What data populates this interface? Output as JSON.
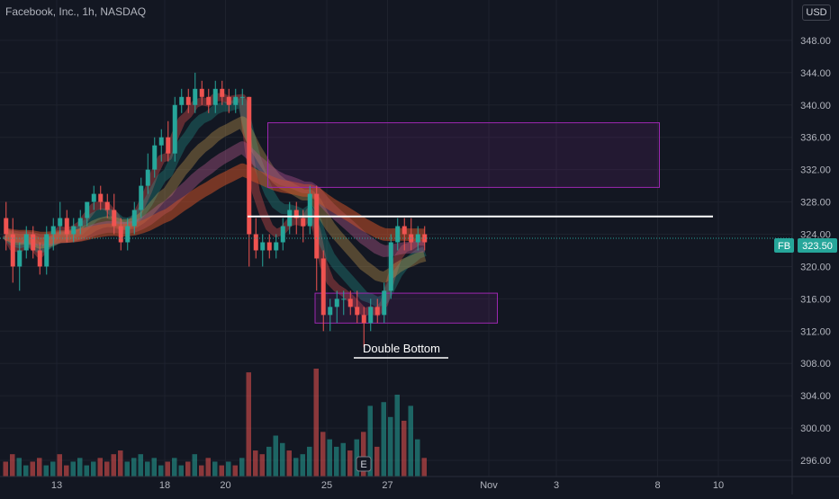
{
  "header": {
    "title": "Facebook, Inc., 1h, NASDAQ",
    "currency": "USD"
  },
  "price_tag": {
    "symbol": "FB",
    "value": "323.50"
  },
  "annotation": {
    "text": "Double Bottom"
  },
  "earnings_marker": {
    "label": "E"
  },
  "colors": {
    "background": "#131722",
    "up": "#26a69a",
    "down": "#ef5350",
    "grid": "#1e222d",
    "axis_text": "#b2b5be",
    "zone": "#9c27b0",
    "last_price": "#26a69a"
  },
  "chart_data": {
    "type": "candlestick",
    "symbol": "FB",
    "timeframe": "1h",
    "exchange": "NASDAQ",
    "ylim": [
      294,
      353
    ],
    "y_ticks": [
      "296.00",
      "300.00",
      "304.00",
      "308.00",
      "312.00",
      "316.00",
      "320.00",
      "324.00",
      "328.00",
      "332.00",
      "336.00",
      "340.00",
      "344.00",
      "348.00"
    ],
    "x_ticks": [
      {
        "label": "13",
        "bar": 4
      },
      {
        "label": "18",
        "bar": 20
      },
      {
        "label": "20",
        "bar": 29
      },
      {
        "label": "25",
        "bar": 44
      },
      {
        "label": "27",
        "bar": 53
      },
      {
        "label": "Nov",
        "bar": 68
      },
      {
        "label": "3",
        "bar": 78
      },
      {
        "label": "8",
        "bar": 93
      },
      {
        "label": "10",
        "bar": 102
      }
    ],
    "resistance_line": {
      "price": 326.2,
      "from_bar": 36,
      "to_bar": 102
    },
    "zones": [
      {
        "top": 337.8,
        "bottom": 329.8,
        "from_bar": 39,
        "to_bar": 97
      },
      {
        "top": 316.7,
        "bottom": 313.0,
        "from_bar": 46,
        "to_bar": 73
      }
    ],
    "last_price": 323.5,
    "candles": [
      [
        326,
        328,
        322,
        324
      ],
      [
        324,
        326,
        318,
        320
      ],
      [
        320,
        323,
        317,
        322
      ],
      [
        322,
        325,
        321,
        324
      ],
      [
        324,
        325,
        321,
        322
      ],
      [
        322,
        323,
        319,
        320
      ],
      [
        320,
        325,
        319,
        324
      ],
      [
        324,
        326,
        322,
        325
      ],
      [
        325,
        328,
        324,
        326
      ],
      [
        326,
        327,
        323,
        324
      ],
      [
        324,
        326,
        323,
        325
      ],
      [
        325,
        327,
        324,
        326
      ],
      [
        326,
        328,
        325,
        328
      ],
      [
        328,
        330,
        327,
        329
      ],
      [
        329,
        330,
        327,
        328
      ],
      [
        328,
        329,
        326,
        327
      ],
      [
        327,
        329,
        324,
        325
      ],
      [
        325,
        326,
        322,
        323
      ],
      [
        323,
        326,
        322,
        325
      ],
      [
        325,
        328,
        324,
        327
      ],
      [
        327,
        331,
        326,
        330
      ],
      [
        330,
        334,
        329,
        332
      ],
      [
        332,
        336,
        331,
        335
      ],
      [
        335,
        337,
        333,
        336
      ],
      [
        336,
        338,
        333,
        334
      ],
      [
        334,
        341,
        333,
        340
      ],
      [
        340,
        342,
        339,
        341
      ],
      [
        341,
        342,
        339,
        340
      ],
      [
        340,
        344,
        339,
        342
      ],
      [
        342,
        343,
        340,
        341
      ],
      [
        341,
        342,
        339,
        340
      ],
      [
        340,
        343,
        339,
        342
      ],
      [
        342,
        343,
        340,
        341
      ],
      [
        341,
        342,
        339,
        340
      ],
      [
        340,
        342,
        339,
        341
      ],
      [
        341,
        342,
        340,
        341
      ],
      [
        341,
        341,
        320,
        324
      ],
      [
        324,
        326,
        321,
        322
      ],
      [
        322,
        324,
        320,
        323
      ],
      [
        323,
        324,
        321,
        322
      ],
      [
        322,
        324,
        321,
        323
      ],
      [
        323,
        326,
        322,
        325
      ],
      [
        325,
        328,
        324,
        327
      ],
      [
        327,
        328,
        324,
        326
      ],
      [
        326,
        327,
        323,
        325
      ],
      [
        325,
        330,
        324,
        329
      ],
      [
        329,
        330,
        317,
        321
      ],
      [
        321,
        322,
        312,
        314
      ],
      [
        314,
        316,
        312,
        315
      ],
      [
        315,
        317,
        313,
        316
      ],
      [
        316,
        317,
        314,
        316
      ],
      [
        316,
        317,
        314,
        315
      ],
      [
        315,
        317,
        313,
        314
      ],
      [
        314,
        315,
        310,
        313
      ],
      [
        313,
        316,
        312,
        315
      ],
      [
        315,
        316,
        313,
        314
      ],
      [
        314,
        318,
        313,
        317
      ],
      [
        317,
        324,
        316,
        323
      ],
      [
        323,
        326,
        322,
        325
      ],
      [
        325,
        326,
        322,
        324
      ],
      [
        324,
        326,
        322,
        323
      ],
      [
        323,
        325,
        322,
        324
      ],
      [
        324,
        325,
        322,
        323
      ]
    ],
    "volumes": [
      [
        4,
        "down"
      ],
      [
        6,
        "down"
      ],
      [
        5,
        "up"
      ],
      [
        3,
        "up"
      ],
      [
        4,
        "down"
      ],
      [
        5,
        "down"
      ],
      [
        3,
        "up"
      ],
      [
        4,
        "up"
      ],
      [
        6,
        "down"
      ],
      [
        3,
        "down"
      ],
      [
        4,
        "up"
      ],
      [
        5,
        "up"
      ],
      [
        3,
        "up"
      ],
      [
        4,
        "up"
      ],
      [
        5,
        "down"
      ],
      [
        4,
        "down"
      ],
      [
        6,
        "down"
      ],
      [
        7,
        "down"
      ],
      [
        4,
        "up"
      ],
      [
        5,
        "up"
      ],
      [
        6,
        "up"
      ],
      [
        4,
        "up"
      ],
      [
        5,
        "up"
      ],
      [
        3,
        "up"
      ],
      [
        4,
        "down"
      ],
      [
        5,
        "up"
      ],
      [
        3,
        "up"
      ],
      [
        4,
        "down"
      ],
      [
        6,
        "up"
      ],
      [
        3,
        "down"
      ],
      [
        5,
        "down"
      ],
      [
        4,
        "up"
      ],
      [
        3,
        "down"
      ],
      [
        4,
        "up"
      ],
      [
        3,
        "down"
      ],
      [
        5,
        "up"
      ],
      [
        28,
        "down"
      ],
      [
        7,
        "down"
      ],
      [
        6,
        "down"
      ],
      [
        8,
        "up"
      ],
      [
        11,
        "up"
      ],
      [
        9,
        "up"
      ],
      [
        7,
        "down"
      ],
      [
        5,
        "up"
      ],
      [
        6,
        "up"
      ],
      [
        8,
        "up"
      ],
      [
        29,
        "down"
      ],
      [
        12,
        "down"
      ],
      [
        10,
        "up"
      ],
      [
        8,
        "up"
      ],
      [
        9,
        "up"
      ],
      [
        7,
        "down"
      ],
      [
        10,
        "up"
      ],
      [
        12,
        "down"
      ],
      [
        19,
        "up"
      ],
      [
        8,
        "down"
      ],
      [
        20,
        "up"
      ],
      [
        16,
        "up"
      ],
      [
        22,
        "up"
      ],
      [
        15,
        "down"
      ],
      [
        19,
        "up"
      ],
      [
        10,
        "up"
      ],
      [
        5,
        "down"
      ]
    ]
  }
}
